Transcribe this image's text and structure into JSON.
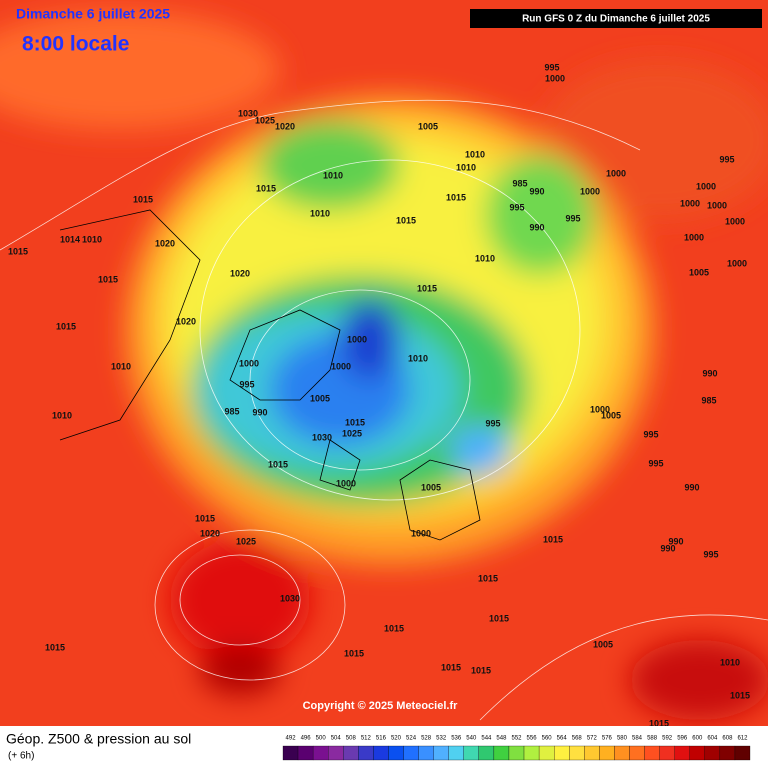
{
  "header": {
    "date": "Dimanche 6 juillet 2025",
    "time": "8:00 locale",
    "run": "Run GFS 0 Z du Dimanche 6 juillet 2025"
  },
  "copyright": "Copyright © 2025 Meteociel.fr",
  "isobar_labels": [
    "1015",
    "1014",
    "1010",
    "1015",
    "1020",
    "1015",
    "1015",
    "1010",
    "1010",
    "1030",
    "1025",
    "1020",
    "1015",
    "1010",
    "1010",
    "1005",
    "1010",
    "1010",
    "985",
    "990",
    "995",
    "995",
    "990",
    "1000",
    "1015",
    "1015",
    "1010",
    "1015",
    "1020",
    "1020",
    "1000",
    "1000",
    "1010",
    "1000",
    "995",
    "985",
    "990",
    "1005",
    "1015",
    "1025",
    "1030",
    "1015",
    "1000",
    "995",
    "1005",
    "1000",
    "1015",
    "1020",
    "1025",
    "1030",
    "1015",
    "1015",
    "1015",
    "1015",
    "1015",
    "1015",
    "1015",
    "1015",
    "1005",
    "1010",
    "1015",
    "1015",
    "1000",
    "1005",
    "995",
    "995",
    "990",
    "990",
    "990",
    "995",
    "990",
    "985",
    "995",
    "1000",
    "995",
    "1000",
    "1000",
    "1000",
    "1000",
    "1000",
    "1000",
    "1005",
    "1000"
  ],
  "legend": {
    "title": "Géop. Z500 & pression au sol",
    "subtitle": "(+ 6h)",
    "levels": [
      492,
      496,
      500,
      504,
      508,
      512,
      516,
      520,
      524,
      528,
      532,
      536,
      540,
      544,
      548,
      552,
      556,
      560,
      564,
      568,
      572,
      576,
      580,
      584,
      588,
      592,
      596,
      600,
      604,
      608,
      612
    ],
    "colors": [
      "#3a0050",
      "#5a0070",
      "#7a1090",
      "#8a2aa0",
      "#6a3ab0",
      "#3a3ac8",
      "#1a3ae0",
      "#0a50f0",
      "#2070ff",
      "#3a90ff",
      "#50b0ff",
      "#50d0f0",
      "#40d8b0",
      "#30c870",
      "#40d040",
      "#80e040",
      "#b0f040",
      "#e0f040",
      "#fff040",
      "#ffe040",
      "#ffc830",
      "#ffb020",
      "#ff9020",
      "#ff7020",
      "#ff5020",
      "#f03020",
      "#e01010",
      "#c00000",
      "#a00000",
      "#800000",
      "#600000"
    ]
  }
}
